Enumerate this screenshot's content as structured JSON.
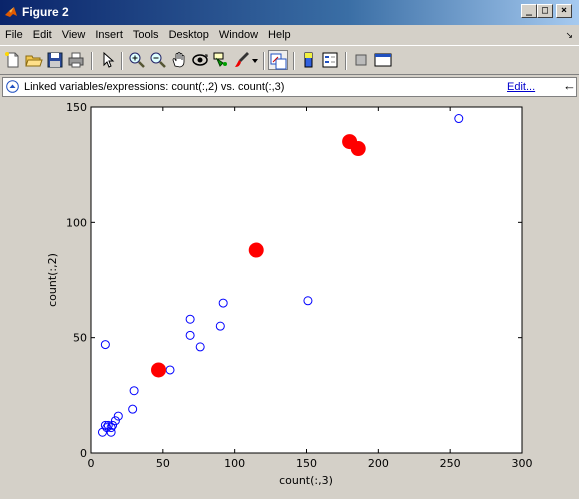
{
  "window": {
    "title": "Figure 2",
    "controls": {
      "minimize": "_",
      "maximize": "□",
      "close": "×"
    }
  },
  "menu": {
    "items": [
      "File",
      "Edit",
      "View",
      "Insert",
      "Tools",
      "Desktop",
      "Window",
      "Help"
    ],
    "overflow_arrow": "↘"
  },
  "toolbar": {
    "buttons": [
      "new-figure-icon",
      "open-file-icon",
      "save-icon",
      "print-icon",
      "pointer-icon",
      "zoom-in-icon",
      "zoom-out-icon",
      "pan-hand-icon",
      "rotate-3d-icon",
      "data-cursor-icon",
      "brush-icon",
      "brush-dropdown-icon",
      "link-plot-icon",
      "colorbar-icon",
      "legend-icon",
      "hide-plot-tools-icon",
      "show-plot-tools-icon"
    ]
  },
  "linkbar": {
    "text": "Linked variables/expressions: count(:,2) vs. count(:,3)",
    "edit_label": "Edit...",
    "close_glyph": "←"
  },
  "colors": {
    "marker": "#0000ff",
    "brushed": "#ff0000"
  },
  "chart_data": {
    "type": "scatter",
    "xlabel": "count(:,3)",
    "ylabel": "count(:,2)",
    "xlim": [
      0,
      300
    ],
    "ylim": [
      0,
      150
    ],
    "xticks": [
      0,
      50,
      100,
      150,
      200,
      250,
      300
    ],
    "yticks": [
      0,
      50,
      100,
      150
    ],
    "grid": false,
    "series": [
      {
        "marker": "open-circle",
        "x": [
          256,
          151,
          92,
          90,
          69,
          69,
          76,
          55,
          10,
          30,
          29,
          19,
          17,
          14,
          14,
          12,
          10,
          8,
          15,
          11
        ],
        "y": [
          145,
          66,
          65,
          55,
          58,
          51,
          46,
          36,
          47,
          27,
          19,
          16,
          14,
          11,
          9,
          12,
          12,
          9,
          12,
          11
        ]
      },
      {
        "marker": "filled-circle",
        "x": [
          180,
          186,
          115,
          47
        ],
        "y": [
          135,
          132,
          88,
          36
        ]
      }
    ]
  }
}
